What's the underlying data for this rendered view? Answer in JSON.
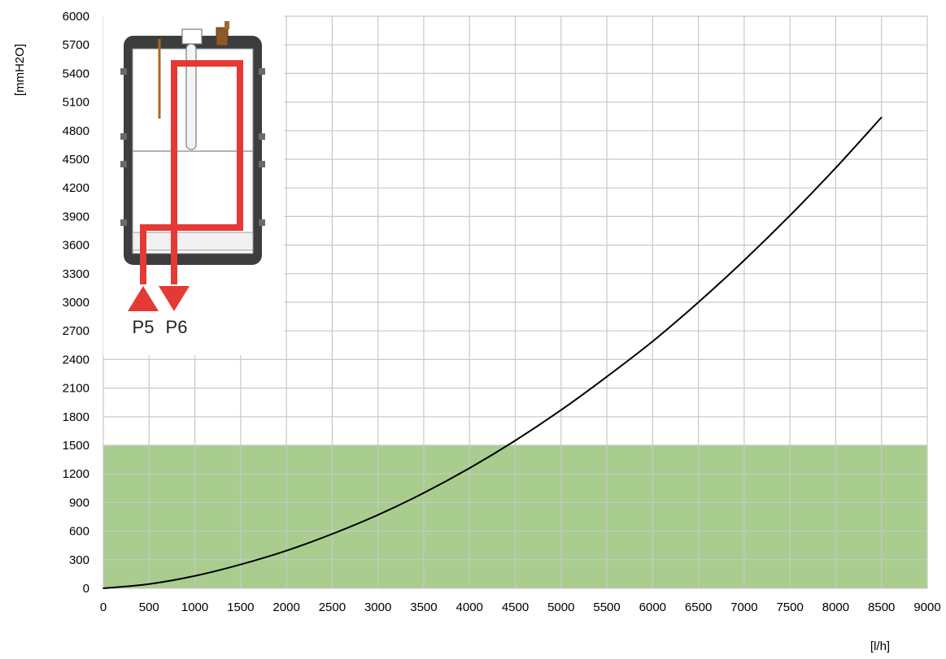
{
  "chart_data": {
    "type": "line",
    "xlabel": "[l/h]",
    "ylabel": "[mmH2O]",
    "xlim": [
      0,
      9000
    ],
    "ylim": [
      0,
      6000
    ],
    "x_ticks": [
      0,
      500,
      1000,
      1500,
      2000,
      2500,
      3000,
      3500,
      4000,
      4500,
      5000,
      5500,
      6000,
      6500,
      7000,
      7500,
      8000,
      8500,
      9000
    ],
    "y_ticks": [
      0,
      300,
      600,
      900,
      1200,
      1500,
      1800,
      2100,
      2400,
      2700,
      3000,
      3300,
      3600,
      3900,
      4200,
      4500,
      4800,
      5100,
      5400,
      5700,
      6000
    ],
    "grid": true,
    "series": [
      {
        "x": [
          0,
          500,
          1000,
          1500,
          2000,
          2500,
          3000,
          3500,
          4000,
          4500,
          5000,
          5500,
          6000,
          6500,
          7000,
          7500,
          8000,
          8500
        ],
        "values": [
          0,
          45,
          130,
          250,
          395,
          570,
          770,
          1000,
          1260,
          1550,
          1870,
          2220,
          2590,
          3000,
          3440,
          3910,
          4410,
          4940
        ],
        "color": "#000000"
      }
    ],
    "bands": [
      {
        "y_from": 0,
        "y_to": 1500,
        "color": "#a9cd8f"
      }
    ]
  },
  "inset": {
    "ports": [
      {
        "label": "P5",
        "direction": "in"
      },
      {
        "label": "P6",
        "direction": "out"
      }
    ],
    "flow_color": "#e53935"
  }
}
